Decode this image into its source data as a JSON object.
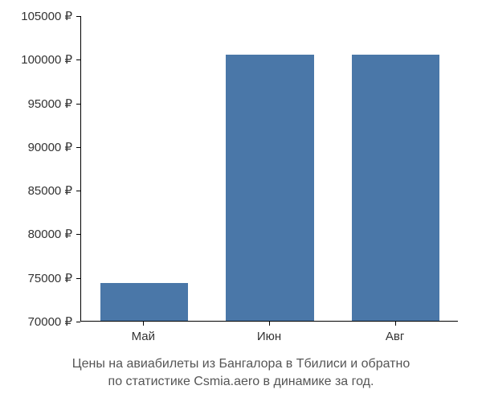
{
  "chart": {
    "type": "bar",
    "categories": [
      "Май",
      "Июн",
      "Авг"
    ],
    "values": [
      74300,
      100500,
      100500
    ],
    "currency_suffix": " ₽",
    "bar_color": "#4a77a8",
    "ylim": [
      70000,
      105000
    ],
    "ytick_step": 5000,
    "yticks": [
      70000,
      75000,
      80000,
      85000,
      90000,
      95000,
      100000,
      105000
    ],
    "ytick_labels": [
      "70000 ₽",
      "75000 ₽",
      "80000 ₽",
      "85000 ₽",
      "90000 ₽",
      "95000 ₽",
      "100000 ₽",
      "105000 ₽"
    ],
    "background_color": "#ffffff",
    "axis_color": "#000000",
    "tick_label_color": "#333333",
    "tick_label_fontsize": 15,
    "bar_width_ratio": 0.7,
    "caption_line1": "Цены на авиабилеты из Бангалора в Тбилиси и обратно",
    "caption_line2": "по статистике Csmia.aero в динамике за год.",
    "caption_color": "#555555",
    "caption_fontsize": 16
  }
}
